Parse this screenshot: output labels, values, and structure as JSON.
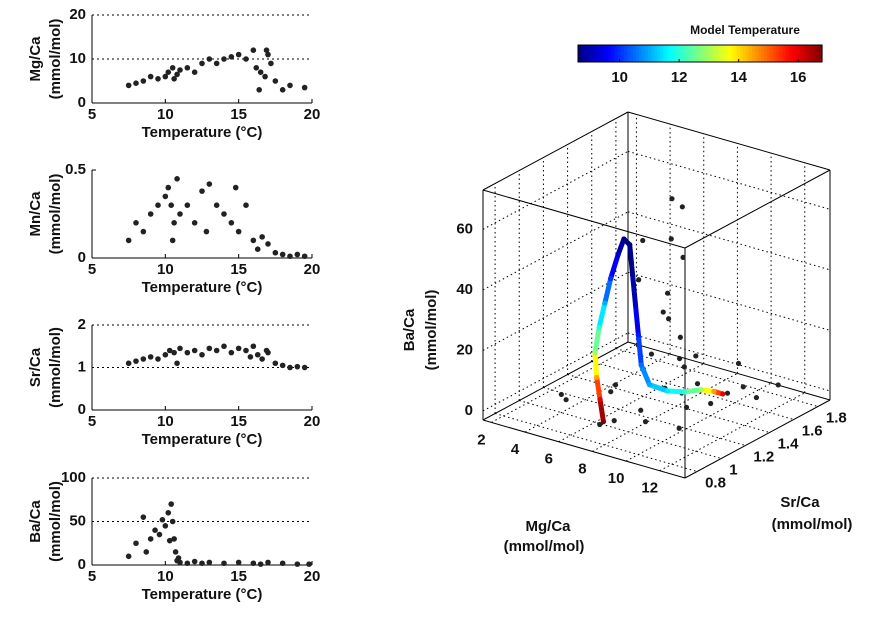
{
  "chart_data": [
    {
      "type": "scatter",
      "xlabel": "Temperature (°C)",
      "ylabel": [
        "Mg/Ca",
        "(mmol/mol)"
      ],
      "color": "#222222",
      "xlim": [
        5,
        20
      ],
      "xticks": [
        5,
        10,
        15,
        20
      ],
      "ylim": [
        0,
        20
      ],
      "yticks": [
        0,
        10,
        20
      ],
      "grid": true,
      "x": [
        7.5,
        8,
        8.5,
        9,
        9.5,
        10,
        10.2,
        10.5,
        10.8,
        11,
        11.5,
        12,
        12.5,
        13,
        13.5,
        14,
        14.5,
        15,
        15.5,
        16,
        16.2,
        16.5,
        16.8,
        17,
        17.2,
        17.5,
        18,
        18.5,
        19.5,
        10.6,
        16.4,
        16.9
      ],
      "y": [
        4,
        4.5,
        5,
        6,
        5.5,
        6,
        7,
        8,
        6.5,
        7.5,
        8,
        7,
        9,
        10,
        9,
        10,
        10.5,
        11,
        10,
        12,
        8,
        7,
        6,
        11,
        9,
        5,
        3,
        4,
        3.5,
        5.5,
        3,
        12
      ]
    },
    {
      "type": "scatter",
      "xlabel": "Temperature (°C)",
      "ylabel": [
        "Mn/Ca",
        "(mmol/mol)"
      ],
      "color": "#222222",
      "xlim": [
        5,
        20
      ],
      "xticks": [
        5,
        10,
        15,
        20
      ],
      "ylim": [
        0,
        0.5
      ],
      "yticks": [
        0,
        0.5
      ],
      "grid": false,
      "x": [
        7.5,
        8,
        8.5,
        9,
        9.5,
        10,
        10.2,
        10.4,
        10.6,
        10.8,
        11,
        11.5,
        12,
        12.5,
        13,
        13.5,
        14,
        14.5,
        15,
        15.5,
        16,
        16.3,
        16.6,
        17,
        17.5,
        18,
        18.5,
        19,
        19.5,
        10.5,
        12.8,
        14.8
      ],
      "y": [
        0.1,
        0.2,
        0.15,
        0.25,
        0.3,
        0.35,
        0.4,
        0.3,
        0.2,
        0.45,
        0.25,
        0.3,
        0.2,
        0.38,
        0.42,
        0.3,
        0.25,
        0.2,
        0.15,
        0.3,
        0.1,
        0.05,
        0.12,
        0.08,
        0.03,
        0.02,
        0.01,
        0.02,
        0.01,
        0.1,
        0.15,
        0.4
      ]
    },
    {
      "type": "scatter",
      "xlabel": "Temperature (°C)",
      "ylabel": [
        "Sr/Ca",
        "(mmol/mol)"
      ],
      "color": "#222222",
      "xlim": [
        5,
        20
      ],
      "xticks": [
        5,
        10,
        15,
        20
      ],
      "ylim": [
        0,
        2
      ],
      "yticks": [
        0,
        1,
        2
      ],
      "grid": true,
      "x": [
        7.5,
        8,
        8.5,
        9,
        9.5,
        10,
        10.3,
        10.6,
        11,
        11.5,
        12,
        12.5,
        13,
        13.5,
        14,
        14.5,
        15,
        15.5,
        16,
        16.3,
        16.6,
        17,
        17.5,
        18,
        18.5,
        19,
        19.5,
        10.8,
        15.8,
        16.9
      ],
      "y": [
        1.1,
        1.15,
        1.2,
        1.25,
        1.2,
        1.3,
        1.4,
        1.35,
        1.45,
        1.35,
        1.4,
        1.3,
        1.45,
        1.4,
        1.5,
        1.35,
        1.45,
        1.4,
        1.5,
        1.3,
        1.2,
        1.35,
        1.1,
        1.05,
        1.0,
        1.02,
        1.0,
        1.1,
        1.25,
        1.4
      ]
    },
    {
      "type": "scatter",
      "xlabel": "Temperature (°C)",
      "ylabel": [
        "Ba/Ca",
        "(mmol/mol)"
      ],
      "color": "#222222",
      "xlim": [
        5,
        20
      ],
      "xticks": [
        5,
        10,
        15,
        20
      ],
      "ylim": [
        0,
        100
      ],
      "yticks": [
        0,
        50,
        100
      ],
      "grid": true,
      "x": [
        7.5,
        8,
        8.5,
        9,
        9.3,
        9.6,
        10,
        10.2,
        10.4,
        10.5,
        10.6,
        10.7,
        10.8,
        11,
        11.5,
        12,
        13,
        14,
        15,
        16,
        17,
        18,
        19,
        19.8,
        8.7,
        9.8,
        10.3,
        12.5,
        16.5,
        10.9
      ],
      "y": [
        10,
        25,
        55,
        30,
        40,
        35,
        45,
        60,
        70,
        50,
        30,
        15,
        5,
        3,
        2,
        4,
        3,
        2,
        3,
        2,
        3,
        2,
        1,
        1,
        15,
        52,
        28,
        2,
        1,
        8
      ]
    },
    {
      "type": "scatter3d",
      "xlabel": [
        "Mg/Ca",
        "(mmol/mol)"
      ],
      "ylabel": [
        "Sr/Ca",
        "(mmol/mol)"
      ],
      "zlabel": [
        "Ba/Ca",
        "(mmol/mol)"
      ],
      "color": "#222222",
      "grid": true,
      "colormap": "jet",
      "xlim": [
        1.5,
        13.5
      ],
      "xticks": [
        2,
        4,
        6,
        8,
        10,
        12
      ],
      "ylim": [
        0.7,
        1.9
      ],
      "yticks": [
        0.8,
        1,
        1.2,
        1.4,
        1.6,
        1.8
      ],
      "zlim": [
        -3,
        73
      ],
      "zticks": [
        0,
        20,
        40,
        60
      ],
      "points": {
        "x": [
          4,
          5,
          5.5,
          6,
          6.5,
          7,
          7.5,
          8,
          8.5,
          9,
          9.5,
          10,
          10.5,
          11,
          11.5,
          12,
          5,
          6,
          7,
          8,
          9,
          10,
          11,
          7.2,
          7.5,
          7.8,
          8,
          7.4,
          7.6,
          8.2,
          7.9,
          6.8,
          7.3,
          8.4,
          7.7
        ],
        "y": [
          1.0,
          0.9,
          1.2,
          1.4,
          1.1,
          1.6,
          0.95,
          1.3,
          1.5,
          1.0,
          1.7,
          1.2,
          1.6,
          1.4,
          1.75,
          1.5,
          1.5,
          1.7,
          0.9,
          1.1,
          1.3,
          1.4,
          1.0,
          1.3,
          1.4,
          1.35,
          1.45,
          1.2,
          1.5,
          1.4,
          1.3,
          1.25,
          1.45,
          1.5,
          1.4
        ],
        "z": [
          3,
          5,
          2,
          6,
          8,
          4,
          1,
          5,
          3,
          2,
          7,
          4,
          3,
          6,
          2,
          4,
          10,
          3,
          0,
          2,
          5,
          1,
          3,
          15,
          25,
          35,
          45,
          55,
          60,
          20,
          30,
          40,
          50,
          12,
          65
        ]
      },
      "model": {
        "x": [
          6.5,
          6.3,
          6.1,
          6.0,
          6.1,
          6.3,
          6.5,
          6.8,
          7.0,
          7.2,
          7.3,
          7.4,
          7.5,
          7.6,
          7.8,
          8.3,
          8.8,
          9.3,
          9.7,
          10.0
        ],
        "y": [
          1.0,
          1.0,
          1.0,
          1.0,
          1.02,
          1.04,
          1.06,
          1.08,
          1.1,
          1.12,
          1.13,
          1.14,
          1.15,
          1.16,
          1.2,
          1.28,
          1.35,
          1.42,
          1.47,
          1.5
        ],
        "z": [
          -2,
          5,
          12,
          20,
          28,
          36,
          44,
          52,
          57,
          55,
          45,
          35,
          25,
          15,
          8,
          5,
          4,
          4,
          3,
          2
        ],
        "temperature": [
          17,
          16,
          14.5,
          13,
          12,
          11,
          10,
          9.2,
          8.6,
          8.5,
          8.8,
          9.2,
          9.8,
          10.5,
          11,
          11.5,
          12,
          13,
          14.5,
          16
        ]
      },
      "colorbar": {
        "title": "Model Temperature",
        "clim": [
          8.6,
          16.8
        ],
        "ticks": [
          10,
          12,
          14,
          16
        ]
      }
    }
  ]
}
